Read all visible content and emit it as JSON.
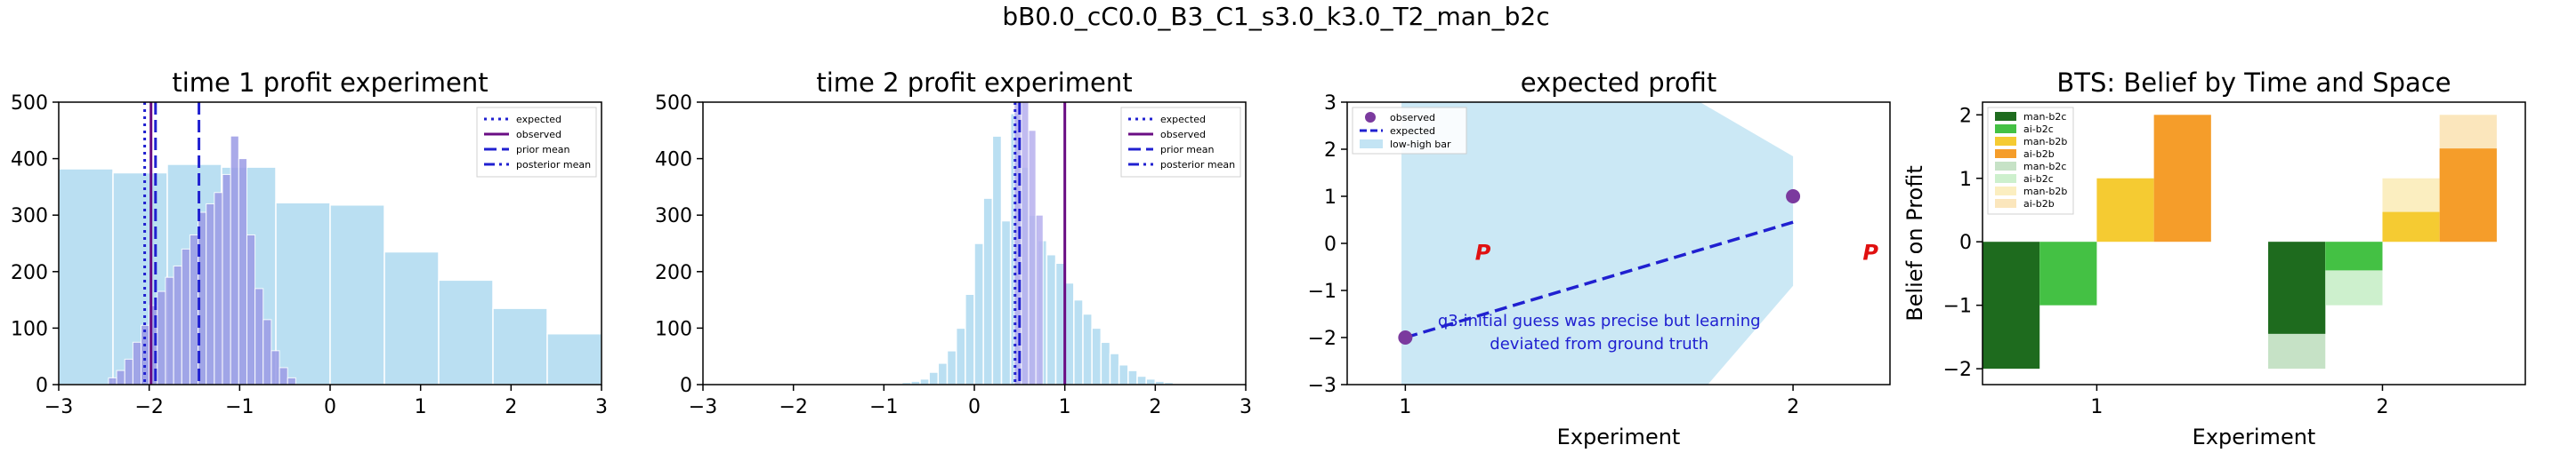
{
  "figure": {
    "suptitle": "bB0.0_cC0.0_B3_C1_s3.0_k3.0_T2_man_b2c"
  },
  "chart_data": [
    {
      "id": "p1",
      "type": "bar",
      "title": "time 1 profit experiment",
      "xlim": [
        -3,
        3
      ],
      "ylim": [
        0,
        500
      ],
      "xticks": [
        -3,
        -2,
        -1,
        0,
        1,
        2,
        3
      ],
      "yticks": [
        0,
        100,
        200,
        300,
        400,
        500
      ],
      "colors": {
        "wide": "#a9d8ef",
        "narrow": "#9c9ce6",
        "observed": "#6a0d83",
        "expected": "#2020d0"
      },
      "wide_bins": {
        "edges": [
          -3.0,
          -2.4,
          -1.8,
          -1.2,
          -0.6,
          0.0,
          0.6,
          1.2,
          1.8,
          2.4,
          3.0
        ],
        "heights": [
          382,
          375,
          390,
          385,
          322,
          318,
          235,
          185,
          135,
          90
        ]
      },
      "narrow_bins": {
        "edges": [
          -2.45,
          -2.36,
          -2.27,
          -2.18,
          -2.09,
          -2.0,
          -1.91,
          -1.82,
          -1.73,
          -1.64,
          -1.55,
          -1.46,
          -1.37,
          -1.28,
          -1.19,
          -1.1,
          -1.01,
          -0.92,
          -0.83,
          -0.74,
          -0.65,
          -0.56,
          -0.47,
          -0.38
        ],
        "heights": [
          12,
          25,
          45,
          75,
          105,
          140,
          165,
          190,
          210,
          240,
          265,
          305,
          320,
          340,
          372,
          440,
          400,
          265,
          170,
          115,
          60,
          30,
          12
        ]
      },
      "lines": [
        {
          "x": -2.05,
          "color": "#2020d0",
          "style": "dotted"
        },
        {
          "x": -1.98,
          "color": "#6a0d83",
          "style": "solid"
        },
        {
          "x": -1.93,
          "color": "#2020d0",
          "style": "dashed"
        },
        {
          "x": -1.45,
          "color": "#2020d0",
          "style": "dashed"
        }
      ],
      "legend": [
        {
          "label": "expected",
          "style": "dotted",
          "color": "#2020d0"
        },
        {
          "label": "observed",
          "style": "solid",
          "color": "#6a0d83"
        },
        {
          "label": "prior mean",
          "style": "dashed",
          "color": "#2020d0"
        },
        {
          "label": "posterior mean",
          "style": "dashdot",
          "color": "#2020d0"
        }
      ],
      "legend_position": "top-right"
    },
    {
      "id": "p2",
      "type": "bar",
      "title": "time 2 profit experiment",
      "xlim": [
        -3,
        3
      ],
      "ylim": [
        0,
        500
      ],
      "xticks": [
        -3,
        -2,
        -1,
        0,
        1,
        2,
        3
      ],
      "yticks": [
        0,
        100,
        200,
        300,
        400,
        500
      ],
      "colors": {
        "wide": "#a9d8ef",
        "narrow": "#b7b0ee",
        "observed": "#6a0d83",
        "expected": "#2020d0"
      },
      "wide_bins": {
        "edges": [
          -0.8,
          -0.7,
          -0.6,
          -0.5,
          -0.4,
          -0.3,
          -0.2,
          -0.1,
          0.0,
          0.1,
          0.2,
          0.3,
          0.4,
          0.5,
          0.6,
          0.7,
          0.8,
          0.9,
          1.0,
          1.1,
          1.2,
          1.3,
          1.4,
          1.5,
          1.6,
          1.7,
          1.8,
          1.9,
          2.0,
          2.1,
          2.2,
          2.3,
          2.4
        ],
        "heights": [
          4,
          6,
          10,
          22,
          38,
          60,
          100,
          160,
          250,
          330,
          440,
          290,
          480,
          385,
          300,
          255,
          230,
          215,
          180,
          150,
          125,
          100,
          75,
          55,
          35,
          25,
          15,
          10,
          6,
          4,
          2,
          1
        ]
      },
      "narrow_bins": {
        "edges": [
          0.44,
          0.52,
          0.6,
          0.68,
          0.76
        ],
        "heights": [
          500,
          500,
          450,
          300
        ]
      },
      "lines": [
        {
          "x": 0.45,
          "color": "#2020d0",
          "style": "dotted"
        },
        {
          "x": 0.5,
          "color": "#2020d0",
          "style": "dashed"
        },
        {
          "x": 1.0,
          "color": "#6a0d83",
          "style": "solid"
        }
      ],
      "legend": [
        {
          "label": "expected",
          "style": "dotted",
          "color": "#2020d0"
        },
        {
          "label": "observed",
          "style": "solid",
          "color": "#6a0d83"
        },
        {
          "label": "prior mean",
          "style": "dashed",
          "color": "#2020d0"
        },
        {
          "label": "posterior mean",
          "style": "dashdot",
          "color": "#2020d0"
        }
      ],
      "legend_position": "top-right"
    },
    {
      "id": "p3",
      "type": "line",
      "title": "expected profit",
      "xlabel": "Experiment",
      "xlim": [
        0.85,
        2.25
      ],
      "ylim": [
        -3,
        3
      ],
      "xticks": [
        1,
        2
      ],
      "yticks": [
        -3,
        -2,
        -1,
        0,
        1,
        2,
        3
      ],
      "band_color": "#a9d8ef",
      "band": {
        "upper": [
          [
            0.99,
            3.0
          ],
          [
            1.75,
            3.0
          ],
          [
            2.0,
            2.2
          ],
          [
            2.0,
            3.0
          ]
        ],
        "polygon": [
          [
            0.99,
            -3.0
          ],
          [
            0.99,
            3.0
          ],
          [
            1.76,
            3.0
          ],
          [
            2.0,
            1.85
          ],
          [
            2.0,
            -0.9
          ],
          [
            1.78,
            -3.0
          ]
        ]
      },
      "observed": [
        {
          "x": 1,
          "y": -2.0
        },
        {
          "x": 2,
          "y": 1.0
        }
      ],
      "expected_line": [
        {
          "x": 1,
          "y": -2.0
        },
        {
          "x": 2,
          "y": 0.45
        }
      ],
      "p_markers": [
        {
          "x": 1.2,
          "y": -0.2
        },
        {
          "x": 2.2,
          "y": -0.2
        }
      ],
      "p_label": "P",
      "annotation": {
        "lines": [
          "q3.initial guess was precise but learning",
          "deviated from ground truth"
        ],
        "x": 1.5,
        "y": -1.6,
        "color": "#2020d0"
      },
      "legend": [
        {
          "label": "observed",
          "kind": "marker",
          "color": "#7b3a9e"
        },
        {
          "label": "expected",
          "kind": "dashed",
          "color": "#2020d0"
        },
        {
          "label": "low-high bar",
          "kind": "patch",
          "color": "#a9d8ef"
        }
      ],
      "legend_position": "top-left"
    },
    {
      "id": "p4",
      "type": "bar",
      "title": "BTS: Belief by Time and Space",
      "xlabel": "Experiment",
      "ylabel": "Belief on Profit",
      "xlim": [
        0.6,
        2.5
      ],
      "ylim": [
        -2.25,
        2.2
      ],
      "xticks": [
        1,
        2
      ],
      "yticks": [
        -2,
        -1,
        0,
        1,
        2
      ],
      "bars": [
        {
          "x0": 0.6,
          "x1": 0.8,
          "y0": -2.0,
          "y1": 0.0,
          "color": "#1e6b1e"
        },
        {
          "x0": 0.8,
          "x1": 1.0,
          "y0": -1.0,
          "y1": 0.0,
          "color": "#44c144"
        },
        {
          "x0": 1.0,
          "x1": 1.2,
          "y0": 0.0,
          "y1": 1.0,
          "color": "#f5cb32"
        },
        {
          "x0": 1.2,
          "x1": 1.4,
          "y0": 0.0,
          "y1": 2.0,
          "color": "#f59d2a"
        },
        {
          "x0": 1.6,
          "x1": 1.8,
          "y0": -2.0,
          "y1": 0.0,
          "color": "#c6e2c6"
        },
        {
          "x0": 1.6,
          "x1": 1.8,
          "y0": -1.45,
          "y1": 0.0,
          "color": "#1e6b1e"
        },
        {
          "x0": 1.8,
          "x1": 2.0,
          "y0": -1.0,
          "y1": 0.0,
          "color": "#cdf0cd"
        },
        {
          "x0": 1.8,
          "x1": 2.0,
          "y0": -0.45,
          "y1": 0.0,
          "color": "#44c144"
        },
        {
          "x0": 2.0,
          "x1": 2.2,
          "y0": 0.0,
          "y1": 1.0,
          "color": "#fbeec0"
        },
        {
          "x0": 2.0,
          "x1": 2.2,
          "y0": 0.0,
          "y1": 0.47,
          "color": "#f5cb32"
        },
        {
          "x0": 2.2,
          "x1": 2.4,
          "y0": 0.0,
          "y1": 2.0,
          "color": "#fbe6bc"
        },
        {
          "x0": 2.2,
          "x1": 2.4,
          "y0": 0.0,
          "y1": 1.47,
          "color": "#f59d2a"
        }
      ],
      "legend": [
        {
          "label": "man-b2c",
          "color": "#1e6b1e"
        },
        {
          "label": "ai-b2c",
          "color": "#44c144"
        },
        {
          "label": "man-b2b",
          "color": "#f5cb32"
        },
        {
          "label": "ai-b2b",
          "color": "#f59d2a"
        },
        {
          "label": "man-b2c",
          "color": "#c6e2c6"
        },
        {
          "label": "ai-b2c",
          "color": "#cdf0cd"
        },
        {
          "label": "man-b2b",
          "color": "#fbeec0"
        },
        {
          "label": "ai-b2b",
          "color": "#fbe6bc"
        }
      ],
      "legend_position": "top-left"
    }
  ]
}
